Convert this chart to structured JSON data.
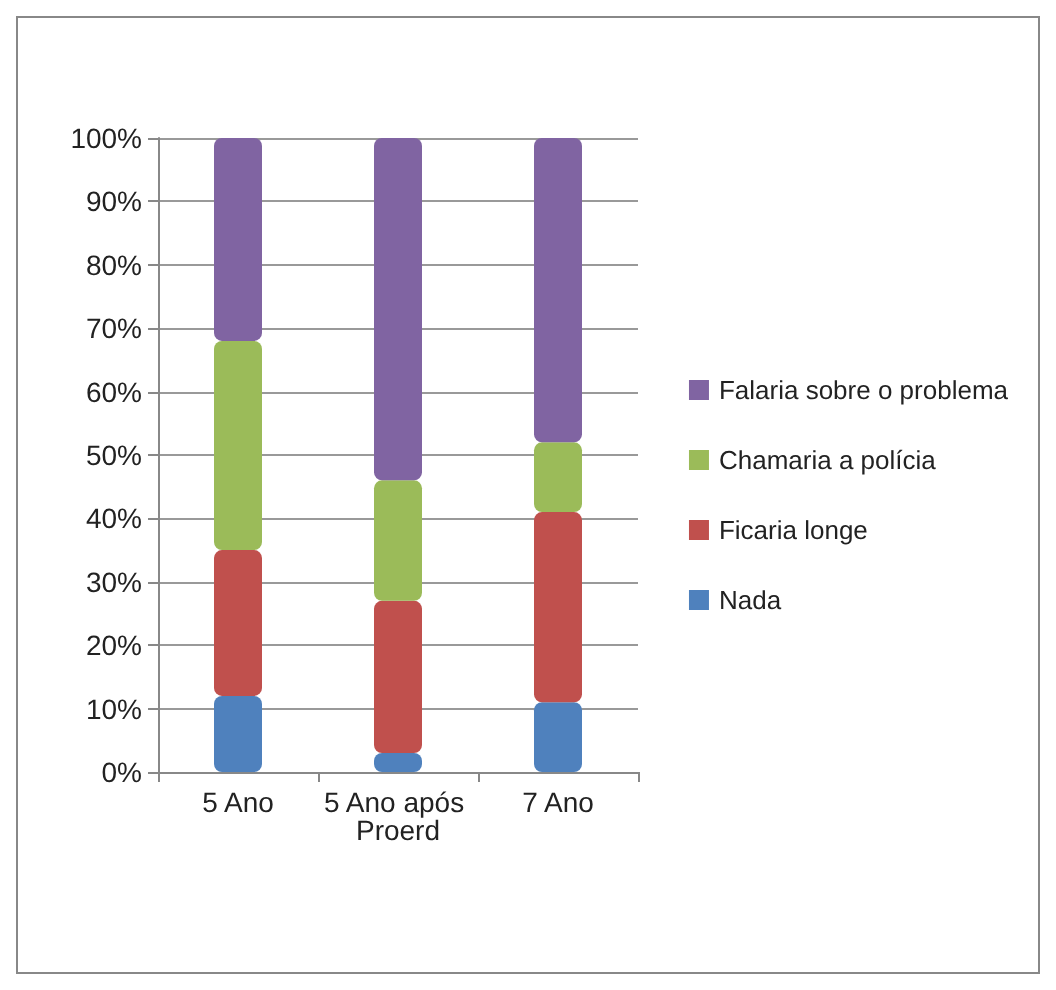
{
  "chart_data": {
    "type": "bar",
    "stacked": true,
    "categories": [
      "5 Ano",
      "5 Ano após Proerd",
      "7 Ano"
    ],
    "series": [
      {
        "name": "Nada",
        "color": "#4f81bd",
        "values": [
          12,
          3,
          11
        ]
      },
      {
        "name": "Ficaria longe",
        "color": "#c0504d",
        "values": [
          23,
          24,
          30
        ]
      },
      {
        "name": "Chamaria a polícia",
        "color": "#9bbb59",
        "values": [
          33,
          19,
          11
        ]
      },
      {
        "name": "Falaria sobre o problema",
        "color": "#8064a2",
        "values": [
          32,
          54,
          48
        ]
      }
    ],
    "ylim": [
      0,
      100
    ],
    "yticks": [
      {
        "value": 0,
        "label": "0%"
      },
      {
        "value": 10,
        "label": "10%"
      },
      {
        "value": 20,
        "label": "20%"
      },
      {
        "value": 30,
        "label": "30%"
      },
      {
        "value": 40,
        "label": "40%"
      },
      {
        "value": 50,
        "label": "50%"
      },
      {
        "value": 60,
        "label": "60%"
      },
      {
        "value": 70,
        "label": "70%"
      },
      {
        "value": 80,
        "label": "80%"
      },
      {
        "value": 90,
        "label": "90%"
      },
      {
        "value": 100,
        "label": "100%"
      }
    ],
    "grid": true,
    "legend": "right"
  }
}
